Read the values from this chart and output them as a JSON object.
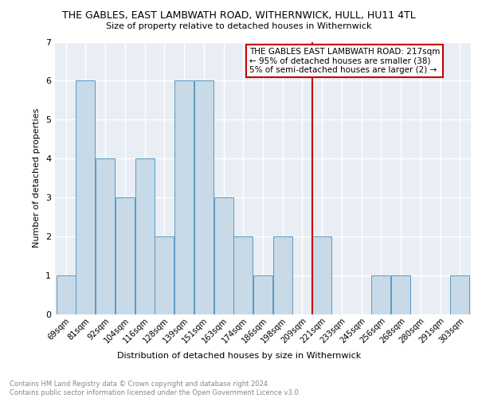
{
  "title": "THE GABLES, EAST LAMBWATH ROAD, WITHERNWICK, HULL, HU11 4TL",
  "subtitle": "Size of property relative to detached houses in Withernwick",
  "xlabel": "Distribution of detached houses by size in Withernwick",
  "ylabel": "Number of detached properties",
  "categories": [
    "69sqm",
    "81sqm",
    "92sqm",
    "104sqm",
    "116sqm",
    "128sqm",
    "139sqm",
    "151sqm",
    "163sqm",
    "174sqm",
    "186sqm",
    "198sqm",
    "209sqm",
    "221sqm",
    "233sqm",
    "245sqm",
    "256sqm",
    "268sqm",
    "280sqm",
    "291sqm",
    "303sqm"
  ],
  "values": [
    1,
    6,
    4,
    3,
    4,
    2,
    6,
    6,
    3,
    2,
    1,
    2,
    0,
    2,
    0,
    0,
    1,
    1,
    0,
    0,
    1
  ],
  "bar_color": "#c8d9e8",
  "bar_edge_color": "#5a9abf",
  "vline_index": 13,
  "vline_color": "#cc0000",
  "ylim": [
    0,
    7
  ],
  "yticks": [
    0,
    1,
    2,
    3,
    4,
    5,
    6,
    7
  ],
  "annotation_title": "THE GABLES EAST LAMBWATH ROAD: 217sqm",
  "annotation_line2": "← 95% of detached houses are smaller (38)",
  "annotation_line3": "5% of semi-detached houses are larger (2) →",
  "annotation_box_color": "#cc0000",
  "footer_line1": "Contains HM Land Registry data © Crown copyright and database right 2024.",
  "footer_line2": "Contains public sector information licensed under the Open Government Licence v3.0.",
  "background_color": "#e8eef4",
  "grid_color": "#ffffff"
}
